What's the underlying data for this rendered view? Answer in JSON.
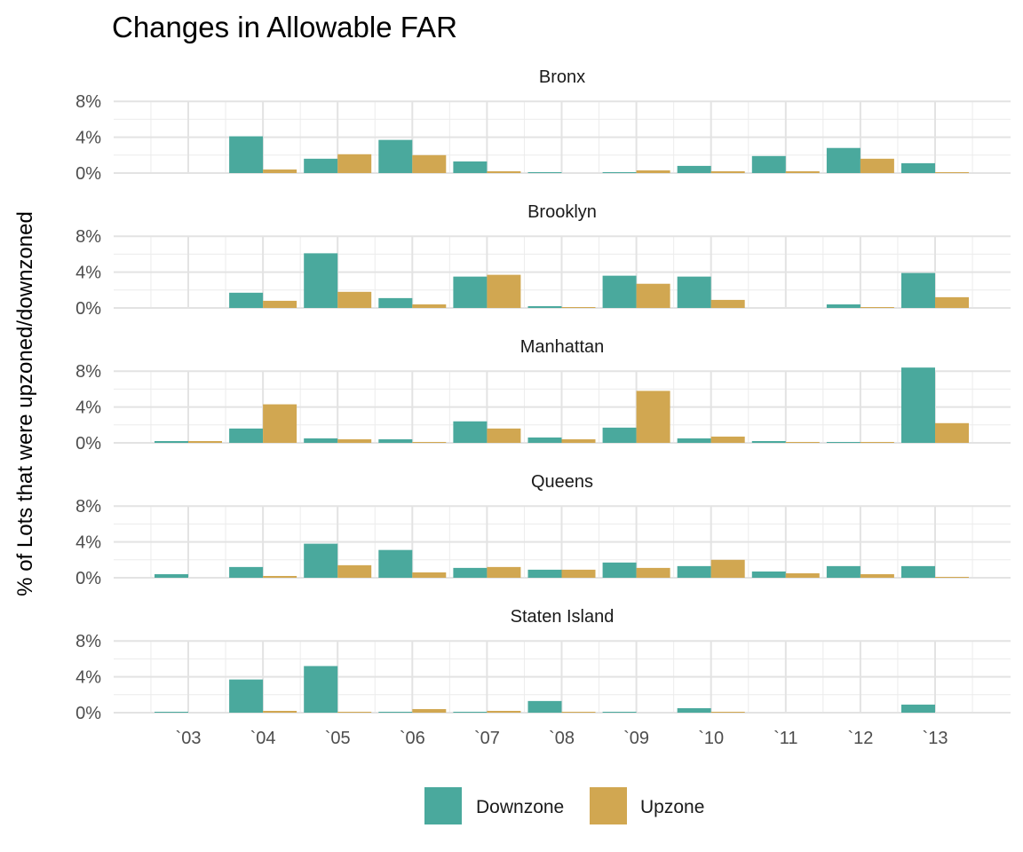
{
  "chart_data": {
    "type": "bar",
    "title": "Changes in Allowable FAR",
    "ylabel": "% of Lots that were upzoned/downzoned",
    "xlabel": "",
    "categories": [
      "`03",
      "`04",
      "`05",
      "`06",
      "`07",
      "`08",
      "`09",
      "`10",
      "`11",
      "`12",
      "`13"
    ],
    "y_ticks": [
      "0%",
      "4%",
      "8%"
    ],
    "ylim": [
      0,
      8
    ],
    "grid": true,
    "legend_position": "bottom",
    "series_meta": [
      {
        "name": "Downzone",
        "color": "#4aa99d"
      },
      {
        "name": "Upzone",
        "color": "#d1a751"
      }
    ],
    "panels": [
      {
        "name": "Bronx",
        "series": [
          {
            "name": "Downzone",
            "values": [
              null,
              4.1,
              1.6,
              3.7,
              1.3,
              0.1,
              0.1,
              0.8,
              1.9,
              2.8,
              1.1
            ]
          },
          {
            "name": "Upzone",
            "values": [
              null,
              0.4,
              2.1,
              2.0,
              0.2,
              null,
              0.3,
              0.2,
              0.2,
              1.6,
              0.1
            ]
          }
        ]
      },
      {
        "name": "Brooklyn",
        "series": [
          {
            "name": "Downzone",
            "values": [
              null,
              1.7,
              6.1,
              1.1,
              3.5,
              0.2,
              3.6,
              3.5,
              null,
              0.4,
              3.9
            ]
          },
          {
            "name": "Upzone",
            "values": [
              null,
              0.8,
              1.8,
              0.4,
              3.7,
              0.1,
              2.7,
              0.9,
              null,
              0.1,
              1.2
            ]
          }
        ]
      },
      {
        "name": "Manhattan",
        "series": [
          {
            "name": "Downzone",
            "values": [
              0.2,
              1.6,
              0.5,
              0.4,
              2.4,
              0.6,
              1.7,
              0.5,
              0.2,
              0.1,
              8.4
            ]
          },
          {
            "name": "Upzone",
            "values": [
              0.2,
              4.3,
              0.4,
              0.1,
              1.6,
              0.4,
              5.8,
              0.7,
              0.1,
              0.1,
              2.2
            ]
          }
        ]
      },
      {
        "name": "Queens",
        "series": [
          {
            "name": "Downzone",
            "values": [
              0.4,
              1.2,
              3.8,
              3.1,
              1.1,
              0.9,
              1.7,
              1.3,
              0.7,
              1.3,
              1.3
            ]
          },
          {
            "name": "Upzone",
            "values": [
              null,
              0.2,
              1.4,
              0.6,
              1.2,
              0.9,
              1.1,
              2.0,
              0.5,
              0.4,
              0.1
            ]
          }
        ]
      },
      {
        "name": "Staten Island",
        "series": [
          {
            "name": "Downzone",
            "values": [
              0.1,
              3.7,
              5.2,
              0.1,
              0.1,
              1.3,
              0.1,
              0.5,
              null,
              null,
              0.9
            ]
          },
          {
            "name": "Upzone",
            "values": [
              null,
              0.2,
              0.1,
              0.4,
              0.2,
              0.1,
              null,
              0.1,
              null,
              null,
              null
            ]
          }
        ]
      }
    ]
  }
}
